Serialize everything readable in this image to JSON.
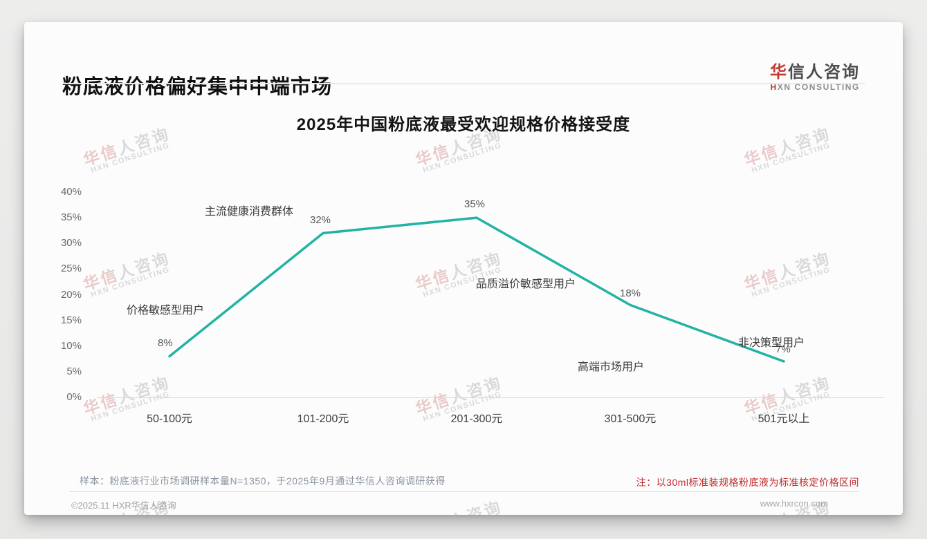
{
  "header": {
    "title": "粉底液价格偏好集中中端市场",
    "logo": {
      "cn_accent": "华",
      "cn_rest": "信人咨询",
      "en_accent": "H",
      "en_rest": "XN CONSULTING"
    }
  },
  "chart_data": {
    "type": "line",
    "title": "2025年中国粉底液最受欢迎规格价格接受度",
    "categories": [
      "50-100元",
      "101-200元",
      "201-300元",
      "301-500元",
      "501元以上"
    ],
    "values": [
      8,
      32,
      35,
      18,
      7
    ],
    "value_labels": [
      "8%",
      "32%",
      "35%",
      "18%",
      "7%"
    ],
    "annotations": [
      "价格敏感型用户",
      "主流健康消费群体",
      "品质溢价敏感型用户",
      "高端市场用户",
      "非决策型用户"
    ],
    "y_ticks": [
      "40%",
      "35%",
      "30%",
      "25%",
      "20%",
      "15%",
      "10%",
      "5%",
      "0%"
    ],
    "ylim": [
      0,
      40
    ],
    "xlabel": "",
    "ylabel": "",
    "grid": false,
    "legend": false,
    "line_color": "#23b3a4"
  },
  "notes": {
    "sample": "样本：粉底液行业市场调研样本量N=1350，于2025年9月通过华信人咨询调研获得",
    "price_basis": "注：以30ml标准装规格粉底液为标准核定价格区间"
  },
  "footer": {
    "copyright": "©2025.11 HXR华信人咨询",
    "website": "www.hxrcon.com"
  },
  "watermark": {
    "cn_red": "华信",
    "cn_gray": "人咨询",
    "en": "HXN CONSULTING"
  }
}
